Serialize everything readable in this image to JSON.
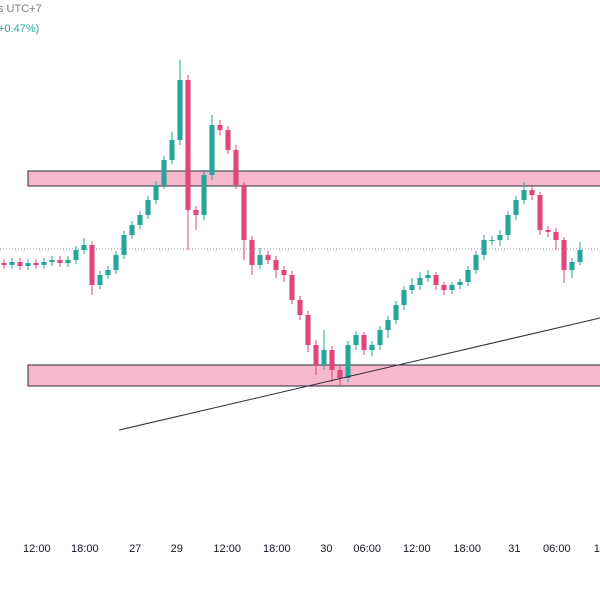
{
  "chart_data": {
    "type": "candlestick",
    "subtitle": "s UTC+7",
    "change_label": "+0.47%)",
    "up_color": "#26a69a",
    "down_color": "#e0457b",
    "xlim": [
      -0.5,
      74.5
    ],
    "ylim": [
      60,
      600
    ],
    "xticks": [
      {
        "value": 4.1,
        "label": "12:00"
      },
      {
        "value": 10.1,
        "label": "18:00"
      },
      {
        "value": 16.4,
        "label": "27"
      },
      {
        "value": 21.6,
        "label": "29"
      },
      {
        "value": 27.9,
        "label": "12:00"
      },
      {
        "value": 34.1,
        "label": "18:00"
      },
      {
        "value": 40.3,
        "label": "30"
      },
      {
        "value": 45.4,
        "label": "06:00"
      },
      {
        "value": 51.6,
        "label": "12:00"
      },
      {
        "value": 57.9,
        "label": "18:00"
      },
      {
        "value": 63.8,
        "label": "31"
      },
      {
        "value": 69.1,
        "label": "06:00"
      },
      {
        "value": 74.1,
        "label": "1"
      }
    ],
    "open": [
      337,
      335,
      338,
      334,
      337,
      335,
      338,
      340,
      337,
      340,
      350,
      355,
      315,
      325,
      330,
      345,
      365,
      375,
      385,
      400,
      415,
      440,
      460,
      520,
      390,
      385,
      425,
      475,
      470,
      450,
      415,
      360,
      335,
      345,
      340,
      330,
      325,
      300,
      285,
      255,
      235,
      250,
      230,
      222,
      255,
      265,
      250,
      255,
      270,
      280,
      295,
      310,
      315,
      322,
      325,
      315,
      310,
      315,
      318,
      330,
      345,
      360,
      360,
      365,
      385,
      400,
      410,
      405,
      370,
      368,
      360,
      330,
      338
    ],
    "high": [
      341,
      342,
      342,
      341,
      341,
      342,
      344,
      344,
      344,
      354,
      362,
      359,
      329,
      334,
      349,
      369,
      379,
      389,
      404,
      419,
      444,
      468,
      540,
      525,
      394,
      430,
      485,
      480,
      474,
      455,
      418,
      364,
      352,
      349,
      344,
      334,
      329,
      304,
      289,
      260,
      270,
      254,
      234,
      259,
      269,
      268,
      259,
      274,
      284,
      299,
      314,
      322,
      328,
      330,
      328,
      318,
      318,
      321,
      334,
      349,
      365,
      364,
      370,
      389,
      404,
      418,
      414,
      408,
      374,
      372,
      363,
      342,
      358
    ],
    "low": [
      331,
      331,
      330,
      330,
      331,
      331,
      334,
      333,
      333,
      336,
      346,
      305,
      311,
      321,
      326,
      341,
      361,
      371,
      381,
      396,
      411,
      436,
      455,
      350,
      370,
      380,
      420,
      465,
      446,
      411,
      340,
      325,
      331,
      336,
      322,
      318,
      296,
      280,
      248,
      225,
      230,
      218,
      215,
      218,
      250,
      245,
      244,
      250,
      262,
      276,
      290,
      306,
      310,
      318,
      310,
      305,
      306,
      311,
      314,
      326,
      340,
      355,
      354,
      360,
      380,
      396,
      400,
      365,
      363,
      350,
      317,
      322,
      335
    ],
    "close": [
      335,
      338,
      334,
      337,
      335,
      338,
      340,
      337,
      340,
      350,
      355,
      315,
      325,
      330,
      345,
      365,
      375,
      385,
      400,
      415,
      440,
      460,
      520,
      390,
      385,
      425,
      475,
      470,
      450,
      415,
      360,
      335,
      345,
      340,
      330,
      325,
      300,
      285,
      255,
      235,
      250,
      230,
      222,
      255,
      265,
      250,
      255,
      270,
      280,
      295,
      310,
      315,
      322,
      325,
      315,
      310,
      315,
      318,
      330,
      345,
      360,
      360,
      365,
      385,
      400,
      410,
      405,
      370,
      368,
      360,
      330,
      338,
      350
    ],
    "zones": [
      {
        "from": 414,
        "to": 429,
        "start": 3,
        "color": "#f7b8cd"
      },
      {
        "from": 214,
        "to": 235,
        "start": 3,
        "color": "#f7b8cd"
      }
    ],
    "trendline": {
      "x": [
        14.4,
        74.5
      ],
      "y": [
        170,
        282
      ]
    },
    "last_price": 351
  }
}
